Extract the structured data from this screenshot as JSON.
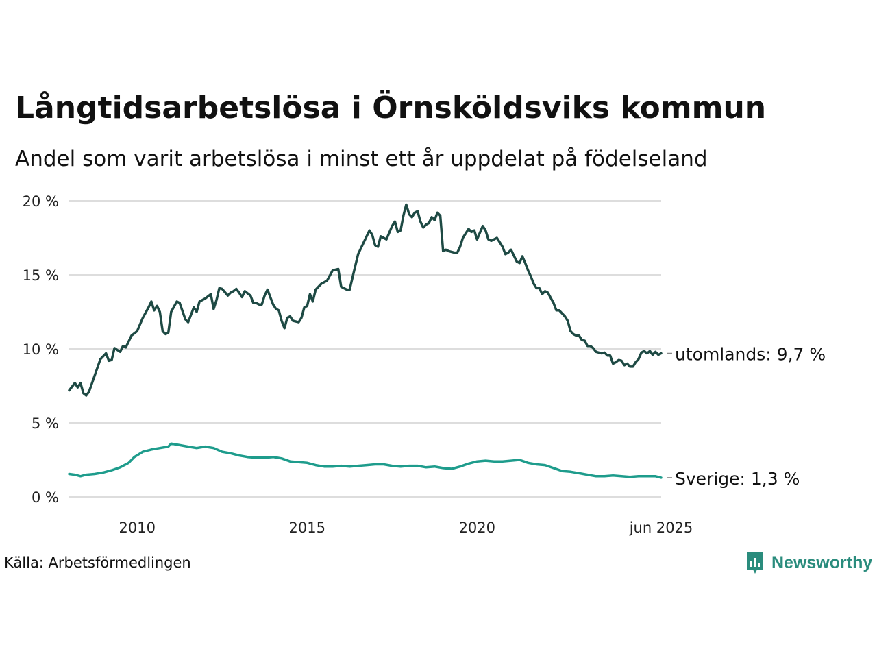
{
  "header": {
    "title": "Långtidsarbetslösa i Örnsköldsviks kommun",
    "subtitle": "Andel som varit arbetslösa i minst ett år uppdelat på födelseland"
  },
  "footer": {
    "source": "Källa: Arbetsförmedlingen",
    "brand": "Newsworthy",
    "brand_color": "#2a8c7d"
  },
  "chart_data": {
    "type": "line",
    "title": "Långtidsarbetslösa i Örnsköldsviks kommun",
    "subtitle": "Andel som varit arbetslösa i minst ett år uppdelat på födelseland",
    "xlabel": "",
    "ylabel": "",
    "ylim": [
      0,
      20
    ],
    "xlim": [
      "2008-01",
      "2025-06"
    ],
    "y_ticks": [
      0,
      5,
      10,
      15,
      20
    ],
    "y_tick_labels": [
      "0 %",
      "5 %",
      "10 %",
      "15 %",
      "20 %"
    ],
    "x_ticks": [
      "2010-01",
      "2015-01",
      "2020-01",
      "2025-06"
    ],
    "x_tick_labels": [
      "2010",
      "2015",
      "2020",
      "jun 2025"
    ],
    "grid": "horizontal",
    "legend": "end-of-line labels",
    "series": [
      {
        "name": "utomlands",
        "end_label": "utomlands: 9,7 %",
        "color": "#1e4a44",
        "points": [
          [
            "2008-01",
            7.2
          ],
          [
            "2008-03",
            7.7
          ],
          [
            "2008-04",
            7.4
          ],
          [
            "2008-05",
            7.7
          ],
          [
            "2008-06",
            7.0
          ],
          [
            "2008-07",
            6.85
          ],
          [
            "2008-08",
            7.1
          ],
          [
            "2008-10",
            8.2
          ],
          [
            "2008-12",
            9.3
          ],
          [
            "2009-02",
            9.7
          ],
          [
            "2009-03",
            9.2
          ],
          [
            "2009-04",
            9.25
          ],
          [
            "2009-05",
            10.05
          ],
          [
            "2009-07",
            9.8
          ],
          [
            "2009-08",
            10.2
          ],
          [
            "2009-09",
            10.1
          ],
          [
            "2009-11",
            10.9
          ],
          [
            "2010-01",
            11.2
          ],
          [
            "2010-03",
            12.1
          ],
          [
            "2010-05",
            12.8
          ],
          [
            "2010-06",
            13.2
          ],
          [
            "2010-07",
            12.6
          ],
          [
            "2010-08",
            12.9
          ],
          [
            "2010-09",
            12.5
          ],
          [
            "2010-10",
            11.2
          ],
          [
            "2010-11",
            11.0
          ],
          [
            "2010-12",
            11.1
          ],
          [
            "2011-01",
            12.5
          ],
          [
            "2011-03",
            13.2
          ],
          [
            "2011-04",
            13.1
          ],
          [
            "2011-06",
            12.0
          ],
          [
            "2011-07",
            11.8
          ],
          [
            "2011-09",
            12.8
          ],
          [
            "2011-10",
            12.5
          ],
          [
            "2011-11",
            13.2
          ],
          [
            "2012-01",
            13.4
          ],
          [
            "2012-03",
            13.7
          ],
          [
            "2012-04",
            12.7
          ],
          [
            "2012-05",
            13.3
          ],
          [
            "2012-06",
            14.1
          ],
          [
            "2012-07",
            14.05
          ],
          [
            "2012-09",
            13.6
          ],
          [
            "2012-10",
            13.8
          ],
          [
            "2012-11",
            13.9
          ],
          [
            "2012-12",
            14.05
          ],
          [
            "2013-01",
            13.8
          ],
          [
            "2013-02",
            13.5
          ],
          [
            "2013-03",
            13.9
          ],
          [
            "2013-05",
            13.6
          ],
          [
            "2013-06",
            13.1
          ],
          [
            "2013-07",
            13.1
          ],
          [
            "2013-08",
            13.0
          ],
          [
            "2013-09",
            13.0
          ],
          [
            "2013-10",
            13.6
          ],
          [
            "2013-11",
            14.0
          ],
          [
            "2014-01",
            13.0
          ],
          [
            "2014-02",
            12.7
          ],
          [
            "2014-03",
            12.6
          ],
          [
            "2014-04",
            11.9
          ],
          [
            "2014-05",
            11.4
          ],
          [
            "2014-06",
            12.1
          ],
          [
            "2014-07",
            12.2
          ],
          [
            "2014-08",
            11.9
          ],
          [
            "2014-10",
            11.8
          ],
          [
            "2014-11",
            12.1
          ],
          [
            "2014-12",
            12.8
          ],
          [
            "2015-01",
            12.9
          ],
          [
            "2015-02",
            13.7
          ],
          [
            "2015-03",
            13.2
          ],
          [
            "2015-04",
            14.0
          ],
          [
            "2015-06",
            14.4
          ],
          [
            "2015-08",
            14.6
          ],
          [
            "2015-10",
            15.3
          ],
          [
            "2015-12",
            15.4
          ],
          [
            "2016-01",
            14.2
          ],
          [
            "2016-03",
            14.0
          ],
          [
            "2016-04",
            14.0
          ],
          [
            "2016-06",
            15.6
          ],
          [
            "2016-07",
            16.4
          ],
          [
            "2016-09",
            17.2
          ],
          [
            "2016-11",
            18.0
          ],
          [
            "2016-12",
            17.7
          ],
          [
            "2017-01",
            17.0
          ],
          [
            "2017-02",
            16.9
          ],
          [
            "2017-03",
            17.6
          ],
          [
            "2017-05",
            17.4
          ],
          [
            "2017-07",
            18.3
          ],
          [
            "2017-08",
            18.6
          ],
          [
            "2017-09",
            17.9
          ],
          [
            "2017-10",
            18.0
          ],
          [
            "2017-11",
            19.0
          ],
          [
            "2017-12",
            19.75
          ],
          [
            "2018-01",
            19.1
          ],
          [
            "2018-02",
            18.9
          ],
          [
            "2018-03",
            19.2
          ],
          [
            "2018-04",
            19.3
          ],
          [
            "2018-05",
            18.6
          ],
          [
            "2018-06",
            18.2
          ],
          [
            "2018-07",
            18.4
          ],
          [
            "2018-08",
            18.5
          ],
          [
            "2018-09",
            18.9
          ],
          [
            "2018-10",
            18.7
          ],
          [
            "2018-11",
            19.2
          ],
          [
            "2018-12",
            19.0
          ],
          [
            "2019-01",
            16.6
          ],
          [
            "2019-02",
            16.7
          ],
          [
            "2019-03",
            16.6
          ],
          [
            "2019-05",
            16.5
          ],
          [
            "2019-06",
            16.5
          ],
          [
            "2019-07",
            16.9
          ],
          [
            "2019-08",
            17.5
          ],
          [
            "2019-10",
            18.1
          ],
          [
            "2019-11",
            17.9
          ],
          [
            "2019-12",
            18.0
          ],
          [
            "2020-01",
            17.4
          ],
          [
            "2020-03",
            18.3
          ],
          [
            "2020-04",
            18.0
          ],
          [
            "2020-05",
            17.4
          ],
          [
            "2020-06",
            17.3
          ],
          [
            "2020-08",
            17.5
          ],
          [
            "2020-09",
            17.2
          ],
          [
            "2020-10",
            16.9
          ],
          [
            "2020-11",
            16.4
          ],
          [
            "2020-12",
            16.5
          ],
          [
            "2021-01",
            16.7
          ],
          [
            "2021-02",
            16.3
          ],
          [
            "2021-03",
            15.9
          ],
          [
            "2021-04",
            15.8
          ],
          [
            "2021-05",
            16.25
          ],
          [
            "2021-06",
            15.8
          ],
          [
            "2021-07",
            15.3
          ],
          [
            "2021-08",
            14.9
          ],
          [
            "2021-09",
            14.4
          ],
          [
            "2021-10",
            14.1
          ],
          [
            "2021-11",
            14.1
          ],
          [
            "2021-12",
            13.7
          ],
          [
            "2022-01",
            13.9
          ],
          [
            "2022-02",
            13.8
          ],
          [
            "2022-04",
            13.1
          ],
          [
            "2022-05",
            12.6
          ],
          [
            "2022-06",
            12.6
          ],
          [
            "2022-07",
            12.4
          ],
          [
            "2022-08",
            12.2
          ],
          [
            "2022-09",
            11.9
          ],
          [
            "2022-10",
            11.2
          ],
          [
            "2022-11",
            11.0
          ],
          [
            "2022-12",
            10.9
          ],
          [
            "2023-01",
            10.9
          ],
          [
            "2023-02",
            10.6
          ],
          [
            "2023-03",
            10.55
          ],
          [
            "2023-04",
            10.2
          ],
          [
            "2023-05",
            10.2
          ],
          [
            "2023-06",
            10.05
          ],
          [
            "2023-07",
            9.8
          ],
          [
            "2023-08",
            9.75
          ],
          [
            "2023-09",
            9.7
          ],
          [
            "2023-10",
            9.75
          ],
          [
            "2023-11",
            9.55
          ],
          [
            "2023-12",
            9.55
          ],
          [
            "2024-01",
            9.0
          ],
          [
            "2024-02",
            9.1
          ],
          [
            "2024-03",
            9.25
          ],
          [
            "2024-04",
            9.2
          ],
          [
            "2024-05",
            8.9
          ],
          [
            "2024-06",
            9.0
          ],
          [
            "2024-07",
            8.8
          ],
          [
            "2024-08",
            8.8
          ],
          [
            "2024-09",
            9.1
          ],
          [
            "2024-10",
            9.3
          ],
          [
            "2024-11",
            9.75
          ],
          [
            "2024-12",
            9.85
          ],
          [
            "2025-01",
            9.7
          ],
          [
            "2025-02",
            9.85
          ],
          [
            "2025-03",
            9.6
          ],
          [
            "2025-04",
            9.8
          ],
          [
            "2025-05",
            9.6
          ],
          [
            "2025-06",
            9.7
          ]
        ]
      },
      {
        "name": "Sverige",
        "end_label": "Sverige: 1,3 %",
        "color": "#1e9c8c",
        "points": [
          [
            "2008-01",
            1.55
          ],
          [
            "2008-03",
            1.5
          ],
          [
            "2008-05",
            1.4
          ],
          [
            "2008-07",
            1.5
          ],
          [
            "2008-10",
            1.55
          ],
          [
            "2009-01",
            1.65
          ],
          [
            "2009-04",
            1.8
          ],
          [
            "2009-07",
            2.0
          ],
          [
            "2009-10",
            2.3
          ],
          [
            "2009-12",
            2.7
          ],
          [
            "2010-03",
            3.05
          ],
          [
            "2010-06",
            3.2
          ],
          [
            "2010-09",
            3.3
          ],
          [
            "2010-12",
            3.4
          ],
          [
            "2011-01",
            3.6
          ],
          [
            "2011-04",
            3.5
          ],
          [
            "2011-07",
            3.4
          ],
          [
            "2011-10",
            3.3
          ],
          [
            "2012-01",
            3.4
          ],
          [
            "2012-04",
            3.3
          ],
          [
            "2012-07",
            3.05
          ],
          [
            "2012-10",
            2.95
          ],
          [
            "2013-01",
            2.8
          ],
          [
            "2013-04",
            2.7
          ],
          [
            "2013-07",
            2.65
          ],
          [
            "2013-10",
            2.65
          ],
          [
            "2014-01",
            2.7
          ],
          [
            "2014-04",
            2.6
          ],
          [
            "2014-07",
            2.4
          ],
          [
            "2014-10",
            2.35
          ],
          [
            "2015-01",
            2.3
          ],
          [
            "2015-04",
            2.15
          ],
          [
            "2015-07",
            2.05
          ],
          [
            "2015-10",
            2.05
          ],
          [
            "2016-01",
            2.1
          ],
          [
            "2016-04",
            2.05
          ],
          [
            "2016-07",
            2.1
          ],
          [
            "2016-10",
            2.15
          ],
          [
            "2017-01",
            2.2
          ],
          [
            "2017-04",
            2.2
          ],
          [
            "2017-07",
            2.1
          ],
          [
            "2017-10",
            2.05
          ],
          [
            "2018-01",
            2.1
          ],
          [
            "2018-04",
            2.1
          ],
          [
            "2018-07",
            2.0
          ],
          [
            "2018-10",
            2.05
          ],
          [
            "2019-01",
            1.95
          ],
          [
            "2019-04",
            1.9
          ],
          [
            "2019-07",
            2.05
          ],
          [
            "2019-10",
            2.25
          ],
          [
            "2020-01",
            2.4
          ],
          [
            "2020-04",
            2.45
          ],
          [
            "2020-07",
            2.4
          ],
          [
            "2020-10",
            2.4
          ],
          [
            "2021-01",
            2.45
          ],
          [
            "2021-04",
            2.5
          ],
          [
            "2021-07",
            2.3
          ],
          [
            "2021-10",
            2.2
          ],
          [
            "2022-01",
            2.15
          ],
          [
            "2022-04",
            1.95
          ],
          [
            "2022-07",
            1.75
          ],
          [
            "2022-10",
            1.7
          ],
          [
            "2023-01",
            1.6
          ],
          [
            "2023-04",
            1.5
          ],
          [
            "2023-07",
            1.4
          ],
          [
            "2023-10",
            1.4
          ],
          [
            "2024-01",
            1.45
          ],
          [
            "2024-04",
            1.4
          ],
          [
            "2024-07",
            1.35
          ],
          [
            "2024-10",
            1.4
          ],
          [
            "2025-01",
            1.4
          ],
          [
            "2025-04",
            1.4
          ],
          [
            "2025-06",
            1.3
          ]
        ]
      }
    ]
  }
}
